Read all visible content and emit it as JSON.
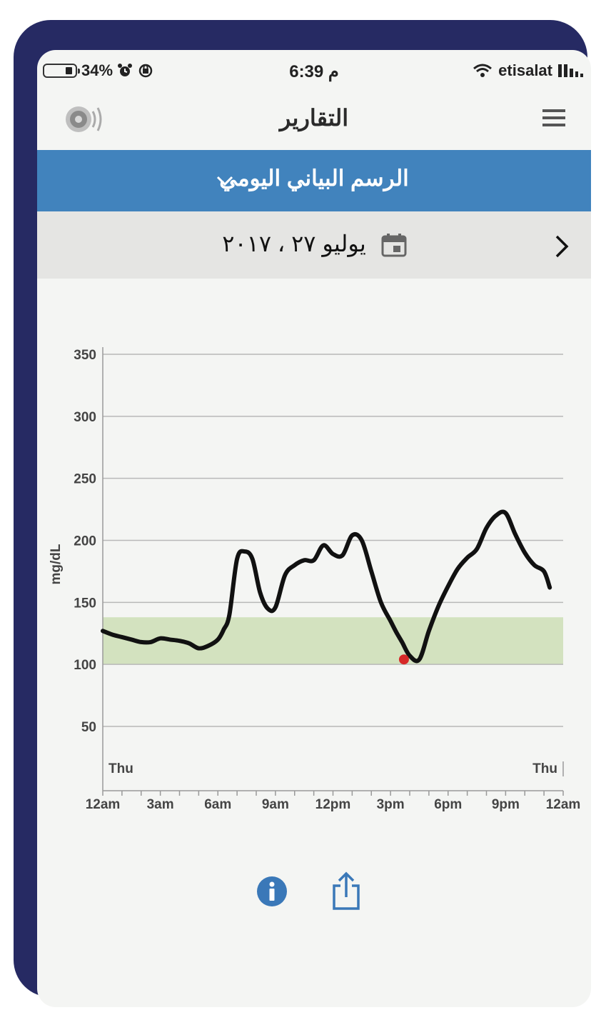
{
  "status": {
    "battery": "34%",
    "time": "6:39 م",
    "carrier": "etisalat"
  },
  "header": {
    "title": "التقارير"
  },
  "report_selector": {
    "label": "الرسم البياني اليومي"
  },
  "date_nav": {
    "date": "يوليو ٢٧ ، ٢٠١٧"
  },
  "icons": [
    "sensor-icon",
    "menu-icon",
    "chevron-down-icon",
    "calendar-icon",
    "chevron-right-icon",
    "info-icon",
    "share-icon"
  ],
  "colors": {
    "accent": "#4183bd",
    "target_band": "#d3e2bf",
    "curve": "#111111",
    "low_marker": "#d62828"
  },
  "chart_data": {
    "type": "line",
    "ylabel": "mg/dL",
    "ylim": [
      0,
      350
    ],
    "yticks": [
      "350",
      "300",
      "250",
      "200",
      "150",
      "100",
      "50"
    ],
    "xticks": [
      "12am",
      "3am",
      "6am",
      "9am",
      "12pm",
      "3pm",
      "6pm",
      "9pm",
      "12am"
    ],
    "day_labels": {
      "start": "Thu",
      "end": "Thu"
    },
    "target_range": [
      100,
      138
    ],
    "grid": true,
    "series": [
      {
        "x": [
          0,
          0.5,
          1,
          1.5,
          2,
          2.5,
          3,
          3.5,
          4,
          4.5,
          5,
          5.5,
          6,
          6.3,
          6.6,
          7,
          7.4,
          7.8,
          8.2,
          8.6,
          9,
          9.5,
          10,
          10.5,
          11,
          11.5,
          12,
          12.5,
          13,
          13.5,
          14,
          14.5,
          15,
          15.3,
          15.6,
          16,
          16.5,
          17,
          17.5,
          18,
          18.5,
          19,
          19.5,
          20,
          20.5,
          21,
          21.5,
          22,
          22.5,
          23,
          23.3
        ],
        "y": [
          127,
          124,
          122,
          120,
          118,
          118,
          121,
          120,
          119,
          117,
          113,
          115,
          120,
          128,
          140,
          185,
          191,
          185,
          158,
          145,
          146,
          172,
          180,
          184,
          184,
          196,
          189,
          188,
          204,
          200,
          175,
          150,
          135,
          126,
          118,
          107,
          104,
          127,
          147,
          163,
          177,
          186,
          193,
          210,
          220,
          222,
          205,
          190,
          180,
          175,
          162
        ]
      }
    ],
    "lows": [
      {
        "x": 15.7,
        "y": 104
      }
    ]
  }
}
